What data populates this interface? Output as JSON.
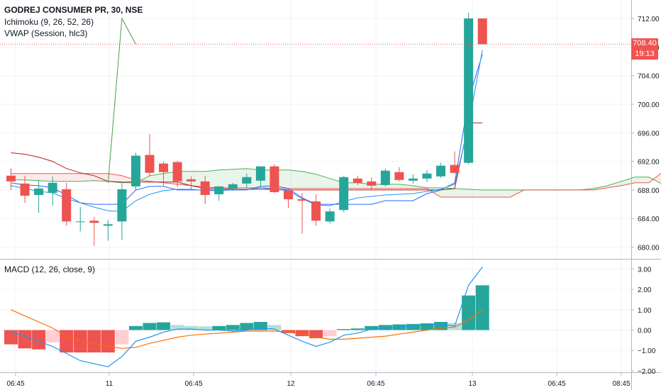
{
  "chart_data": [
    {
      "type": "candlestick",
      "title": "GODREJ CONSUMER PR, 30, NSE",
      "indicators": [
        "Ichimoku (9, 26, 52, 26)",
        "VWAP (Session, hlc3)"
      ],
      "y_ticks": [
        "712.00",
        "708.00",
        "704.00",
        "700.00",
        "696.00",
        "692.00",
        "688.00",
        "684.00",
        "680.00"
      ],
      "ylim": [
        679,
        714
      ],
      "x_ticks": [
        "06:45",
        "11",
        "06:45",
        "12",
        "06:45",
        "13",
        "06:45",
        "08:45"
      ],
      "last_price": "708.40",
      "countdown": "19:13",
      "colors": {
        "up": "#26a69a",
        "down": "#ef5350",
        "kumo_up": "#4caf50",
        "kumo_down": "#ef5350",
        "vwap": "#2196f3",
        "conversion": "#2962ff",
        "base": "#b71c1c",
        "lagging": "#43a047"
      },
      "candles": [
        {
          "o": 690.0,
          "h": 691.0,
          "l": 688.0,
          "c": 689.2
        },
        {
          "o": 688.9,
          "h": 690.0,
          "l": 686.2,
          "c": 687.2
        },
        {
          "o": 687.3,
          "h": 689.4,
          "l": 684.8,
          "c": 688.2
        },
        {
          "o": 687.6,
          "h": 689.9,
          "l": 685.8,
          "c": 689.0
        },
        {
          "o": 688.1,
          "h": 689.0,
          "l": 683.0,
          "c": 683.6
        },
        {
          "o": 683.6,
          "h": 685.6,
          "l": 682.2,
          "c": 683.6
        },
        {
          "o": 683.7,
          "h": 684.2,
          "l": 680.2,
          "c": 683.4
        },
        {
          "o": 683.0,
          "h": 683.8,
          "l": 680.9,
          "c": 683.2
        },
        {
          "o": 683.6,
          "h": 688.9,
          "l": 681.0,
          "c": 688.1
        },
        {
          "o": 688.5,
          "h": 693.2,
          "l": 687.9,
          "c": 692.8
        },
        {
          "o": 692.9,
          "h": 695.8,
          "l": 689.9,
          "c": 690.4
        },
        {
          "o": 691.7,
          "h": 692.0,
          "l": 688.6,
          "c": 690.5
        },
        {
          "o": 691.9,
          "h": 692.1,
          "l": 688.4,
          "c": 689.2
        },
        {
          "o": 689.5,
          "h": 689.9,
          "l": 688.1,
          "c": 689.2
        },
        {
          "o": 689.2,
          "h": 690.0,
          "l": 686.0,
          "c": 687.3
        },
        {
          "o": 687.4,
          "h": 688.5,
          "l": 686.5,
          "c": 688.5
        },
        {
          "o": 688.2,
          "h": 689.0,
          "l": 687.9,
          "c": 688.8
        },
        {
          "o": 688.9,
          "h": 690.3,
          "l": 688.3,
          "c": 689.8
        },
        {
          "o": 689.3,
          "h": 691.3,
          "l": 688.5,
          "c": 691.3
        },
        {
          "o": 691.3,
          "h": 691.6,
          "l": 687.6,
          "c": 687.7
        },
        {
          "o": 687.9,
          "h": 688.0,
          "l": 685.5,
          "c": 686.7
        },
        {
          "o": 686.7,
          "h": 687.6,
          "l": 681.9,
          "c": 686.5
        },
        {
          "o": 686.4,
          "h": 687.4,
          "l": 683.0,
          "c": 683.7
        },
        {
          "o": 683.6,
          "h": 685.4,
          "l": 683.3,
          "c": 685.0
        },
        {
          "o": 685.2,
          "h": 690.0,
          "l": 684.9,
          "c": 689.8
        },
        {
          "o": 689.6,
          "h": 690.0,
          "l": 688.7,
          "c": 689.0
        },
        {
          "o": 689.2,
          "h": 689.8,
          "l": 688.0,
          "c": 688.6
        },
        {
          "o": 688.7,
          "h": 691.0,
          "l": 688.5,
          "c": 690.7
        },
        {
          "o": 690.5,
          "h": 691.2,
          "l": 689.2,
          "c": 689.4
        },
        {
          "o": 689.3,
          "h": 690.2,
          "l": 688.9,
          "c": 689.6
        },
        {
          "o": 689.6,
          "h": 690.8,
          "l": 689.1,
          "c": 690.3
        },
        {
          "o": 689.9,
          "h": 691.8,
          "l": 689.7,
          "c": 691.4
        },
        {
          "o": 691.5,
          "h": 693.4,
          "l": 690.3,
          "c": 690.4
        },
        {
          "o": 691.8,
          "h": 712.8,
          "l": 691.6,
          "c": 712.0
        },
        {
          "o": 712.0,
          "h": 712.0,
          "l": 708.4,
          "c": 708.4
        }
      ],
      "vwap": [
        688.6,
        688.2,
        687.8,
        687.6,
        686.8,
        686.2,
        685.6,
        685.1,
        685.0,
        686.5,
        687.4,
        687.9,
        688.1,
        688.1,
        687.9,
        687.9,
        688.0,
        688.1,
        688.3,
        688.1,
        687.9,
        686.8,
        685.9,
        685.8,
        686.4,
        686.9,
        687.1,
        687.3,
        687.4,
        687.5,
        687.8,
        688.1,
        688.8,
        697.0,
        707.6
      ],
      "conversion": [
        689.0,
        688.7,
        688.6,
        688.3,
        687.3,
        686.2,
        686.0,
        686.0,
        686.0,
        688.0,
        688.5,
        688.5,
        688.0,
        688.0,
        688.0,
        688.0,
        688.0,
        688.0,
        688.5,
        688.6,
        688.2,
        686.9,
        686.0,
        686.0,
        686.0,
        686.0,
        686.0,
        686.5,
        686.5,
        686.5,
        687.5,
        688.0,
        689.0,
        700.6,
        707.0
      ],
      "base": [
        693.2,
        693.0,
        692.6,
        692.0,
        691.0,
        690.4,
        690.0,
        689.2,
        689.1,
        689.1,
        689.1,
        689.1,
        689.1,
        688.6,
        688.2,
        688.2,
        688.1,
        688.1,
        688.1,
        688.1,
        688.0,
        688.0,
        688.0,
        688.0,
        688.0,
        688.0,
        688.0,
        688.0,
        688.0,
        688.0,
        688.0,
        688.0,
        688.2,
        697.4,
        697.4
      ],
      "lagging": [
        {
          "i": 7,
          "v": 689.0
        },
        {
          "i": 8,
          "v": 712.0
        },
        {
          "i": 9,
          "v": 708.4
        }
      ],
      "span_a": [
        689.4,
        689.4,
        689.3,
        689.2,
        689.2,
        689.2,
        689.3,
        689.2,
        689.0,
        689.0,
        690.0,
        690.3,
        690.6,
        690.6,
        690.6,
        690.8,
        690.9,
        691.0,
        690.8,
        690.8,
        690.8,
        690.6,
        690.2,
        689.6,
        689.0,
        689.0,
        688.8,
        688.8,
        688.8,
        688.6,
        688.3,
        688.3,
        688.2,
        688.1,
        688.0,
        688.0,
        688.0,
        688.0,
        688.0,
        688.0,
        688.0,
        688.0,
        688.2,
        688.6,
        689.2,
        689.8,
        689.8,
        688.8,
        688.2
      ],
      "span_b": [
        690.3,
        690.3,
        690.3,
        690.3,
        690.3,
        690.3,
        690.3,
        690.3,
        690.0,
        689.4,
        689.2,
        689.0,
        688.8,
        688.6,
        688.4,
        688.3,
        688.3,
        688.3,
        688.3,
        688.2,
        688.2,
        688.2,
        688.2,
        688.2,
        688.2,
        688.2,
        688.2,
        688.2,
        688.2,
        688.2,
        688.2,
        687.0,
        687.0,
        687.0,
        687.0,
        687.0,
        687.0,
        688.0,
        688.0,
        688.0,
        688.0,
        688.0,
        688.0,
        688.3,
        688.6,
        689.0,
        689.0,
        690.5,
        691.0
      ]
    },
    {
      "type": "macd",
      "title": "MACD (12, 26, close, 9)",
      "y_ticks": [
        "3.00",
        "2.00",
        "1.00",
        "0.00",
        "−1.00",
        "−2.00"
      ],
      "ylim": [
        -2.1,
        3.2
      ],
      "colors": {
        "macd": "#2196f3",
        "signal": "#ff6d00",
        "hist_up_strong": "#26a69a",
        "hist_up_weak": "#b2dfdb",
        "hist_down_strong": "#ef5350",
        "hist_down_weak": "#ffcdd2"
      },
      "histogram": [
        -0.7,
        -0.9,
        -0.95,
        -0.6,
        -1.1,
        -1.1,
        -1.1,
        -1.1,
        -0.7,
        0.2,
        0.35,
        0.38,
        0.25,
        0.2,
        0.18,
        0.2,
        0.25,
        0.35,
        0.4,
        0.25,
        -0.15,
        -0.3,
        -0.4,
        -0.3,
        0.05,
        0.08,
        0.2,
        0.25,
        0.28,
        0.3,
        0.33,
        0.4,
        0.35,
        1.7,
        2.2
      ],
      "macd": [
        -0.1,
        -0.3,
        -0.55,
        -0.8,
        -1.15,
        -1.5,
        -1.65,
        -1.8,
        -1.3,
        -0.55,
        -0.35,
        -0.1,
        0.05,
        0.05,
        0.0,
        0.0,
        -0.05,
        0.0,
        0.1,
        0.05,
        -0.25,
        -0.55,
        -0.8,
        -0.6,
        -0.25,
        -0.15,
        0.05,
        0.1,
        0.15,
        0.2,
        0.25,
        0.3,
        0.2,
        2.2,
        3.1
      ],
      "signal": [
        1.0,
        0.7,
        0.4,
        0.1,
        -0.3,
        -0.55,
        -0.65,
        -0.8,
        -0.9,
        -0.85,
        -0.65,
        -0.5,
        -0.35,
        -0.25,
        -0.2,
        -0.15,
        -0.1,
        -0.05,
        -0.05,
        -0.05,
        -0.1,
        -0.2,
        -0.35,
        -0.45,
        -0.45,
        -0.4,
        -0.35,
        -0.3,
        -0.2,
        -0.1,
        0.0,
        0.1,
        0.15,
        0.5,
        1.0
      ]
    }
  ]
}
